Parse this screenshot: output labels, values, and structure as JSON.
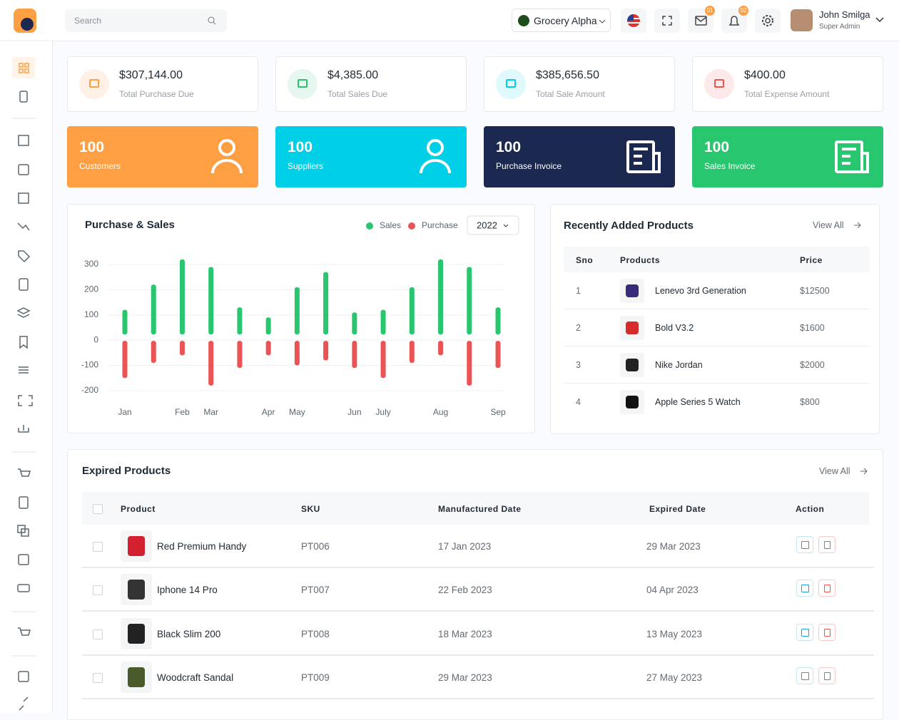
{
  "header": {
    "search": "Search",
    "store": "Grocery Alpha",
    "mail_badge": "01",
    "bell_badge": "02",
    "user_name": "John Smilga",
    "user_role": "Super Admin"
  },
  "summary": [
    {
      "value": "$307,144.00",
      "label": "Total Purchase Due"
    },
    {
      "value": "$4,385.00",
      "label": "Total Sales Due"
    },
    {
      "value": "$385,656.50",
      "label": "Total Sale Amount"
    },
    {
      "value": "$400.00",
      "label": "Total Expense Amount"
    }
  ],
  "counts": [
    {
      "value": 100,
      "label": "Customers"
    },
    {
      "value": 100,
      "label": "Suppliers"
    },
    {
      "value": 100,
      "label": "Purchase Invoice"
    },
    {
      "value": 100,
      "label": "Sales Invoice"
    }
  ],
  "chart_data": {
    "type": "bar",
    "title": "Purchase & Sales",
    "year": "2022",
    "categories": [
      "Jan",
      null,
      "Feb",
      "Mar",
      null,
      "Apr",
      "May",
      null,
      "Jun",
      "July",
      null,
      "Aug",
      null,
      "Sep"
    ],
    "series": [
      {
        "name": "Sales",
        "color": "#28c76f",
        "values": [
          120,
          220,
          320,
          290,
          130,
          90,
          210,
          270,
          110,
          120,
          210,
          320,
          290,
          130
        ]
      },
      {
        "name": "Purchase",
        "color": "#ea5455",
        "values": [
          -150,
          -90,
          -60,
          -180,
          -110,
          -60,
          -100,
          -80,
          -110,
          -150,
          -90,
          -60,
          -180,
          -110
        ]
      }
    ],
    "ylim": [
      -220,
      320
    ],
    "yticks": [
      300,
      200,
      100,
      0,
      -100,
      -200
    ],
    "grid": true
  },
  "recent": {
    "title": "Recently Added Products",
    "view_all": "View All",
    "columns": [
      "Sno",
      "Products",
      "Price"
    ],
    "rows": [
      [
        "1",
        "Lenevo 3rd Generation",
        "$12500"
      ],
      [
        "2",
        "Bold V3.2",
        "$1600"
      ],
      [
        "3",
        "Nike Jordan",
        "$2000"
      ],
      [
        "4",
        "Apple Series 5  Watch",
        "$800"
      ]
    ]
  },
  "expired": {
    "title": "Expired Products",
    "view_all": "View All",
    "columns": [
      "Product",
      "SKU",
      "Manufactured Date",
      "Expired Date",
      "Action"
    ],
    "rows": [
      [
        "Red Premium Handy",
        "PT006",
        "17 Jan 2023",
        "29 Mar 2023"
      ],
      [
        "Iphone 14 Pro",
        "PT007",
        "22 Feb 2023",
        "04 Apr 2023"
      ],
      [
        "Black Slim 200",
        "PT008",
        "18 Mar 2023",
        "13 May 2023"
      ],
      [
        "Woodcraft Sandal",
        "PT009",
        "29 Mar 2023",
        "27 May 2023"
      ]
    ]
  }
}
